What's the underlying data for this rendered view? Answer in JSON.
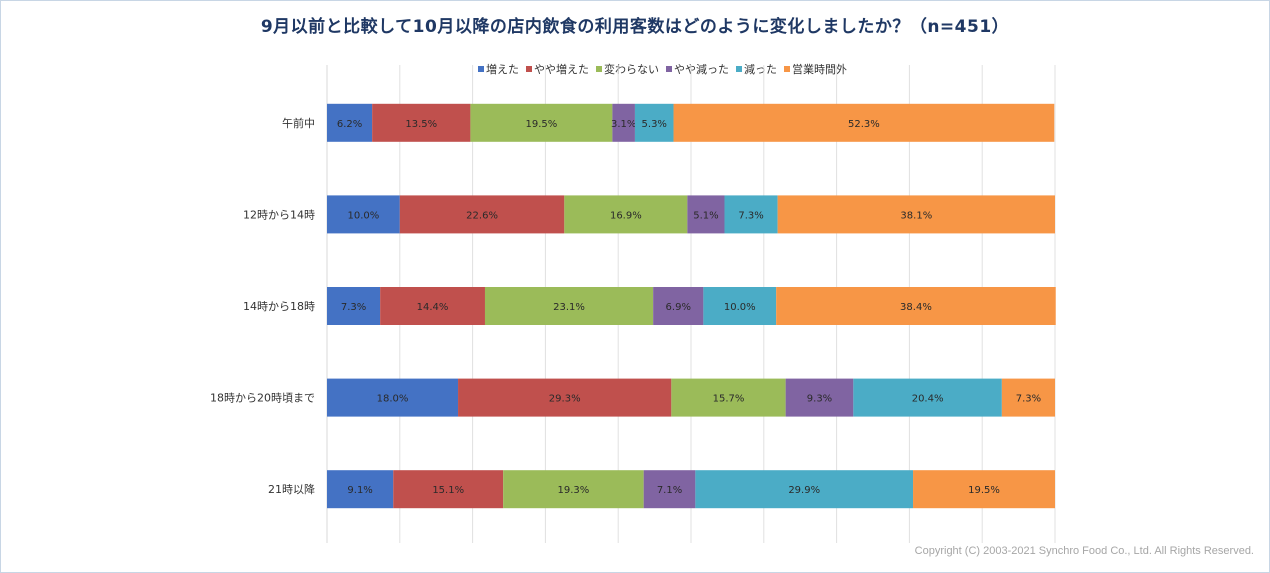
{
  "title": "9月以前と比較して10月以降の店内飲食の利用客数はどのように変化しましたか？（n=451）",
  "copyright": "Copyright (C) 2003-2021  Synchro Food Co., Ltd. All Rights Reserved.",
  "chart_data": {
    "type": "bar",
    "orientation": "horizontal",
    "stacked": "100%",
    "legend_position": "top",
    "grid": true,
    "xlim": [
      0,
      100
    ],
    "categories": [
      "午前中",
      "12時から14時",
      "14時から18時",
      "18時から20時頃まで",
      "21時以降"
    ],
    "series": [
      {
        "name": "増えた",
        "color": "#4472c4",
        "values": [
          6.2,
          10.0,
          7.3,
          18.0,
          9.1
        ],
        "labels": [
          "6.2%",
          "10.0%",
          "7.3%",
          "18.0%",
          "9.1%"
        ]
      },
      {
        "name": "やや増えた",
        "color": "#c0504d",
        "values": [
          13.5,
          22.6,
          14.4,
          29.3,
          15.1
        ],
        "labels": [
          "13.5%",
          "22.6%",
          "14.4%",
          "29.3%",
          "15.1%"
        ]
      },
      {
        "name": "変わらない",
        "color": "#9bbb59",
        "values": [
          19.5,
          16.9,
          23.1,
          15.7,
          19.3
        ],
        "labels": [
          "19.5%",
          "16.9%",
          "23.1%",
          "15.7%",
          "19.3%"
        ]
      },
      {
        "name": "やや減った",
        "color": "#8064a2",
        "values": [
          3.1,
          5.1,
          6.9,
          9.3,
          7.1
        ],
        "labels": [
          "3.1%",
          "5.1%",
          "6.9%",
          "9.3%",
          "7.1%"
        ]
      },
      {
        "name": "減った",
        "color": "#4bacc6",
        "values": [
          5.3,
          7.3,
          10.0,
          20.4,
          29.9
        ],
        "labels": [
          "5.3%",
          "7.3%",
          "10.0%",
          "20.4%",
          "29.9%"
        ]
      },
      {
        "name": "営業時間外",
        "color": "#f79646",
        "values": [
          52.3,
          38.1,
          38.4,
          7.3,
          19.5
        ],
        "labels": [
          "52.3%",
          "38.1%",
          "38.4%",
          "7.3%",
          "19.5%"
        ]
      }
    ]
  }
}
